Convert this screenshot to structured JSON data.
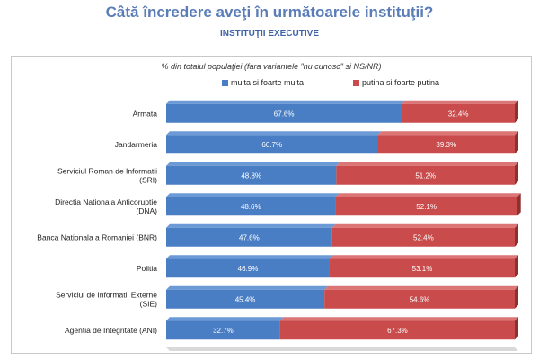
{
  "page": {
    "title": "Câtă încredere aveţi în următoarele instituţii?",
    "subtitle": "INSTITUŢII EXECUTIVE"
  },
  "colors": {
    "title": "#5a7db8",
    "series1": "#4a7ec4",
    "series1_top": "#6b9ad6",
    "series2": "#c94b4b",
    "series2_top": "#dc7575",
    "floor": "#d9d9d9"
  },
  "chart_data": {
    "type": "bar",
    "orientation": "horizontal-stacked-100",
    "title": "% din totalul populaţiei (fara variantele \"nu cunosc\" si NS/NR)",
    "legend_position": "top",
    "categories": [
      "Armata",
      "Jandarmeria",
      "Serviciul Roman de Informatii (SRI)",
      "Directia Nationala Anticoruptie (DNA)",
      "Banca Nationala a Romaniei (BNR)",
      "Politia",
      "Serviciul de Informatii Externe (SIE)",
      "Agentia de Integritate (ANI)"
    ],
    "series": [
      {
        "name": "multa si foarte multa",
        "values": [
          67.6,
          60.7,
          48.8,
          48.6,
          47.6,
          46.9,
          45.4,
          32.7
        ],
        "labels": [
          "67.6%",
          "60.7%",
          "48.8%",
          "48.6%",
          "47.6%",
          "46.9%",
          "45.4%",
          "32.7%"
        ]
      },
      {
        "name": "putina si foarte putina",
        "values": [
          32.4,
          39.3,
          51.2,
          52.1,
          52.4,
          53.1,
          54.6,
          67.3
        ],
        "labels": [
          "32.4%",
          "39.3%",
          "51.2%",
          "52.1%",
          "52.4%",
          "53.1%",
          "54.6%",
          "67.3%"
        ]
      }
    ],
    "xlim": [
      0,
      100
    ]
  }
}
